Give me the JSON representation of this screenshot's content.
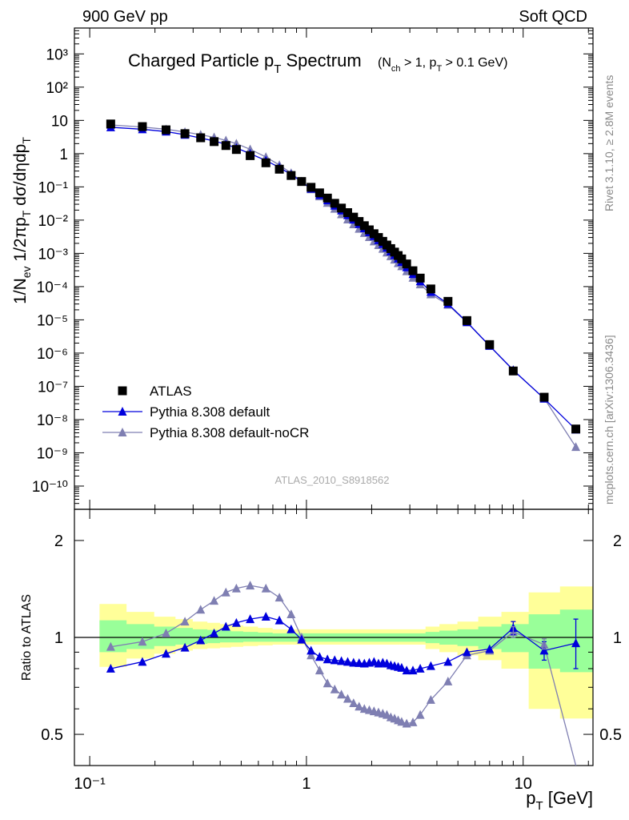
{
  "header": {
    "left": "900 GeV pp",
    "right": "Soft QCD"
  },
  "side_labels": {
    "rivet": "Rivet 3.1.10, ≥ 2.8M events",
    "mcplots": "mcplots.cern.ch [arXiv:1306.3436]"
  },
  "chart_data": [
    {
      "type": "scatter",
      "panel": "main",
      "title_main": "Charged Particle p",
      "title_main_sub": "T",
      "title_main_tail": " Spectrum",
      "title_cuts": "(N",
      "title_cuts_sub1": "ch",
      "title_cuts_mid": " > 1, p",
      "title_cuts_sub2": "T",
      "title_cuts_tail": " > 0.1 GeV)",
      "watermark": "ATLAS_2010_S8918562",
      "ylabel": "1/N",
      "ylabel_sub1": "ev",
      "ylabel_mid": " 1/2πp",
      "ylabel_sub2": "T",
      "ylabel_tail": " dσ/dηdp",
      "ylabel_sub3": "T",
      "x_scale": "log",
      "y_scale": "log",
      "xlim": [
        0.085,
        21
      ],
      "ylim": [
        2e-11,
        6000
      ],
      "y_tick_labels": [
        "10⁻¹⁰",
        "10⁻⁹",
        "10⁻⁸",
        "10⁻⁷",
        "10⁻⁶",
        "10⁻⁵",
        "10⁻⁴",
        "10⁻³",
        "10⁻²",
        "10⁻¹",
        "1",
        "10",
        "10²",
        "10³"
      ],
      "legend_position": "bottom-left",
      "series": [
        {
          "name": "ATLAS",
          "color": "#000000",
          "marker": "square",
          "x": [
            0.125,
            0.175,
            0.225,
            0.275,
            0.325,
            0.375,
            0.425,
            0.475,
            0.55,
            0.65,
            0.75,
            0.85,
            0.95,
            1.05,
            1.15,
            1.25,
            1.35,
            1.45,
            1.55,
            1.65,
            1.75,
            1.85,
            1.95,
            2.05,
            2.15,
            2.25,
            2.35,
            2.45,
            2.55,
            2.65,
            2.75,
            2.9,
            3.1,
            3.35,
            3.75,
            4.5,
            5.5,
            7.0,
            9.0,
            12.5,
            17.5
          ],
          "y": [
            7.8,
            6.5,
            5.2,
            4.0,
            3.0,
            2.3,
            1.75,
            1.33,
            0.87,
            0.53,
            0.34,
            0.22,
            0.145,
            0.097,
            0.066,
            0.046,
            0.032,
            0.023,
            0.0168,
            0.0123,
            0.0091,
            0.0068,
            0.0051,
            0.0039,
            0.003,
            0.0023,
            0.00178,
            0.00139,
            0.00109,
            0.00086,
            0.00068,
            0.00048,
            0.0003,
            0.00018,
            8.5e-05,
            3.6e-05,
            9.5e-06,
            1.8e-06,
            2.9e-07,
            4.7e-08,
            5.2e-09
          ]
        },
        {
          "name": "Pythia 8.308 default",
          "color": "#0000dd",
          "marker": "triangle",
          "x": [
            0.125,
            0.175,
            0.225,
            0.275,
            0.325,
            0.375,
            0.425,
            0.475,
            0.55,
            0.65,
            0.75,
            0.85,
            0.95,
            1.05,
            1.15,
            1.25,
            1.35,
            1.45,
            1.55,
            1.65,
            1.75,
            1.85,
            1.95,
            2.05,
            2.15,
            2.25,
            2.35,
            2.45,
            2.55,
            2.65,
            2.75,
            2.9,
            3.1,
            3.35,
            3.75,
            4.5,
            5.5,
            7.0,
            9.0,
            12.5,
            17.5
          ],
          "y": [
            6.2,
            5.4,
            4.6,
            3.7,
            2.95,
            2.4,
            1.9,
            1.48,
            1.0,
            0.62,
            0.385,
            0.235,
            0.143,
            0.088,
            0.057,
            0.0393,
            0.0273,
            0.0195,
            0.0141,
            0.0103,
            0.0076,
            0.0057,
            0.0043,
            0.0033,
            0.0025,
            0.00192,
            0.00148,
            0.00114,
            0.00089,
            0.0007,
            0.00055,
            0.00038,
            0.000237,
            0.000144,
            6.93e-05,
            3.03e-05,
            8.6e-06,
            1.66e-06,
            3.09e-07,
            4.27e-08,
            5e-09
          ],
          "ratio": [
            0.8,
            0.84,
            0.89,
            0.93,
            0.98,
            1.03,
            1.08,
            1.11,
            1.14,
            1.16,
            1.13,
            1.06,
            0.985,
            0.91,
            0.87,
            0.855,
            0.85,
            0.845,
            0.84,
            0.835,
            0.833,
            0.83,
            0.835,
            0.84,
            0.83,
            0.835,
            0.83,
            0.82,
            0.815,
            0.81,
            0.805,
            0.79,
            0.79,
            0.8,
            0.815,
            0.84,
            0.9,
            0.92,
            1.07,
            0.91,
            0.96
          ]
        },
        {
          "name": "Pythia 8.308 default-noCR",
          "color": "#7f7fb2",
          "marker": "triangle",
          "x": [
            0.125,
            0.175,
            0.225,
            0.275,
            0.325,
            0.375,
            0.425,
            0.475,
            0.55,
            0.65,
            0.75,
            0.85,
            0.95,
            1.05,
            1.15,
            1.25,
            1.35,
            1.45,
            1.55,
            1.65,
            1.75,
            1.85,
            1.95,
            2.05,
            2.15,
            2.25,
            2.35,
            2.45,
            2.55,
            2.65,
            2.75,
            2.9,
            3.1,
            3.35,
            3.75,
            4.5,
            5.5,
            7.0,
            9.0,
            12.5,
            17.5
          ],
          "y": [
            7.3,
            6.3,
            5.4,
            4.5,
            3.7,
            3.1,
            2.5,
            2.0,
            1.35,
            0.79,
            0.455,
            0.26,
            0.145,
            0.085,
            0.052,
            0.0331,
            0.022,
            0.015,
            0.0105,
            0.0075,
            0.0055,
            0.0041,
            0.0031,
            0.0023,
            0.00178,
            0.00137,
            0.00106,
            0.00082,
            0.00065,
            0.00051,
            0.00041,
            0.00029,
            0.000185,
            0.000117,
            5.87e-05,
            2.85e-05,
            8.4e-06,
            1.64e-06,
            3.02e-07,
            4.37e-08,
            1.5e-09
          ],
          "ratio": [
            0.935,
            0.97,
            1.03,
            1.12,
            1.22,
            1.3,
            1.38,
            1.42,
            1.45,
            1.42,
            1.33,
            1.18,
            1.0,
            0.88,
            0.79,
            0.72,
            0.69,
            0.665,
            0.645,
            0.625,
            0.61,
            0.6,
            0.595,
            0.59,
            0.585,
            0.58,
            0.575,
            0.565,
            0.56,
            0.553,
            0.547,
            0.54,
            0.545,
            0.575,
            0.64,
            0.73,
            0.88,
            0.91,
            1.04,
            0.95,
            0.28
          ]
        }
      ]
    },
    {
      "type": "line",
      "panel": "ratio",
      "ylabel": "Ratio to ATLAS",
      "xlabel": "p",
      "xlabel_sub": "T",
      "xlabel_unit": "[GeV]",
      "x_scale": "log",
      "y_scale": "log",
      "xlim": [
        0.085,
        21
      ],
      "ylim": [
        0.4,
        2.5
      ],
      "x_tick_labels": [
        "10⁻¹",
        "1",
        "10"
      ],
      "y_tick_labels": [
        "0.5",
        "1",
        "2"
      ],
      "bands": {
        "green_color": "#99ff99",
        "yellow_color": "#ffff99",
        "green_upper": [
          1.13,
          1.1,
          1.08,
          1.07,
          1.06,
          1.055,
          1.05,
          1.045,
          1.04,
          1.035,
          1.03,
          1.03,
          1.03,
          1.03,
          1.03,
          1.03,
          1.03,
          1.03,
          1.03,
          1.03,
          1.03,
          1.03,
          1.03,
          1.03,
          1.03,
          1.03,
          1.03,
          1.03,
          1.03,
          1.03,
          1.03,
          1.03,
          1.03,
          1.03,
          1.04,
          1.05,
          1.06,
          1.08,
          1.1,
          1.18,
          1.22
        ],
        "yellow_upper": [
          1.27,
          1.2,
          1.16,
          1.14,
          1.12,
          1.11,
          1.1,
          1.09,
          1.08,
          1.07,
          1.06,
          1.06,
          1.06,
          1.06,
          1.06,
          1.06,
          1.06,
          1.06,
          1.06,
          1.06,
          1.06,
          1.06,
          1.06,
          1.06,
          1.06,
          1.06,
          1.06,
          1.06,
          1.06,
          1.06,
          1.06,
          1.06,
          1.06,
          1.06,
          1.08,
          1.1,
          1.12,
          1.16,
          1.2,
          1.38,
          1.44
        ],
        "green_lower": [
          0.9,
          0.92,
          0.94,
          0.95,
          0.955,
          0.96,
          0.965,
          0.965,
          0.97,
          0.97,
          0.97,
          0.97,
          0.97,
          0.97,
          0.97,
          0.97,
          0.97,
          0.97,
          0.97,
          0.97,
          0.97,
          0.97,
          0.97,
          0.97,
          0.97,
          0.97,
          0.97,
          0.97,
          0.97,
          0.97,
          0.97,
          0.97,
          0.97,
          0.97,
          0.96,
          0.95,
          0.94,
          0.92,
          0.9,
          0.8,
          0.78
        ],
        "yellow_lower": [
          0.81,
          0.86,
          0.89,
          0.91,
          0.92,
          0.925,
          0.93,
          0.935,
          0.94,
          0.945,
          0.95,
          0.95,
          0.95,
          0.95,
          0.95,
          0.95,
          0.95,
          0.95,
          0.95,
          0.95,
          0.95,
          0.95,
          0.95,
          0.95,
          0.95,
          0.95,
          0.95,
          0.95,
          0.95,
          0.95,
          0.95,
          0.95,
          0.95,
          0.95,
          0.92,
          0.9,
          0.88,
          0.85,
          0.8,
          0.6,
          0.56
        ]
      },
      "error_bars": {
        "x": [
          9.0,
          12.5,
          17.5
        ],
        "default_low": [
          1.02,
          0.85,
          0.8
        ],
        "default_high": [
          1.12,
          0.97,
          1.14
        ],
        "nocr_low": [
          1.0,
          0.92,
          0.28
        ],
        "nocr_high": [
          1.08,
          0.99,
          0.28
        ]
      }
    }
  ]
}
